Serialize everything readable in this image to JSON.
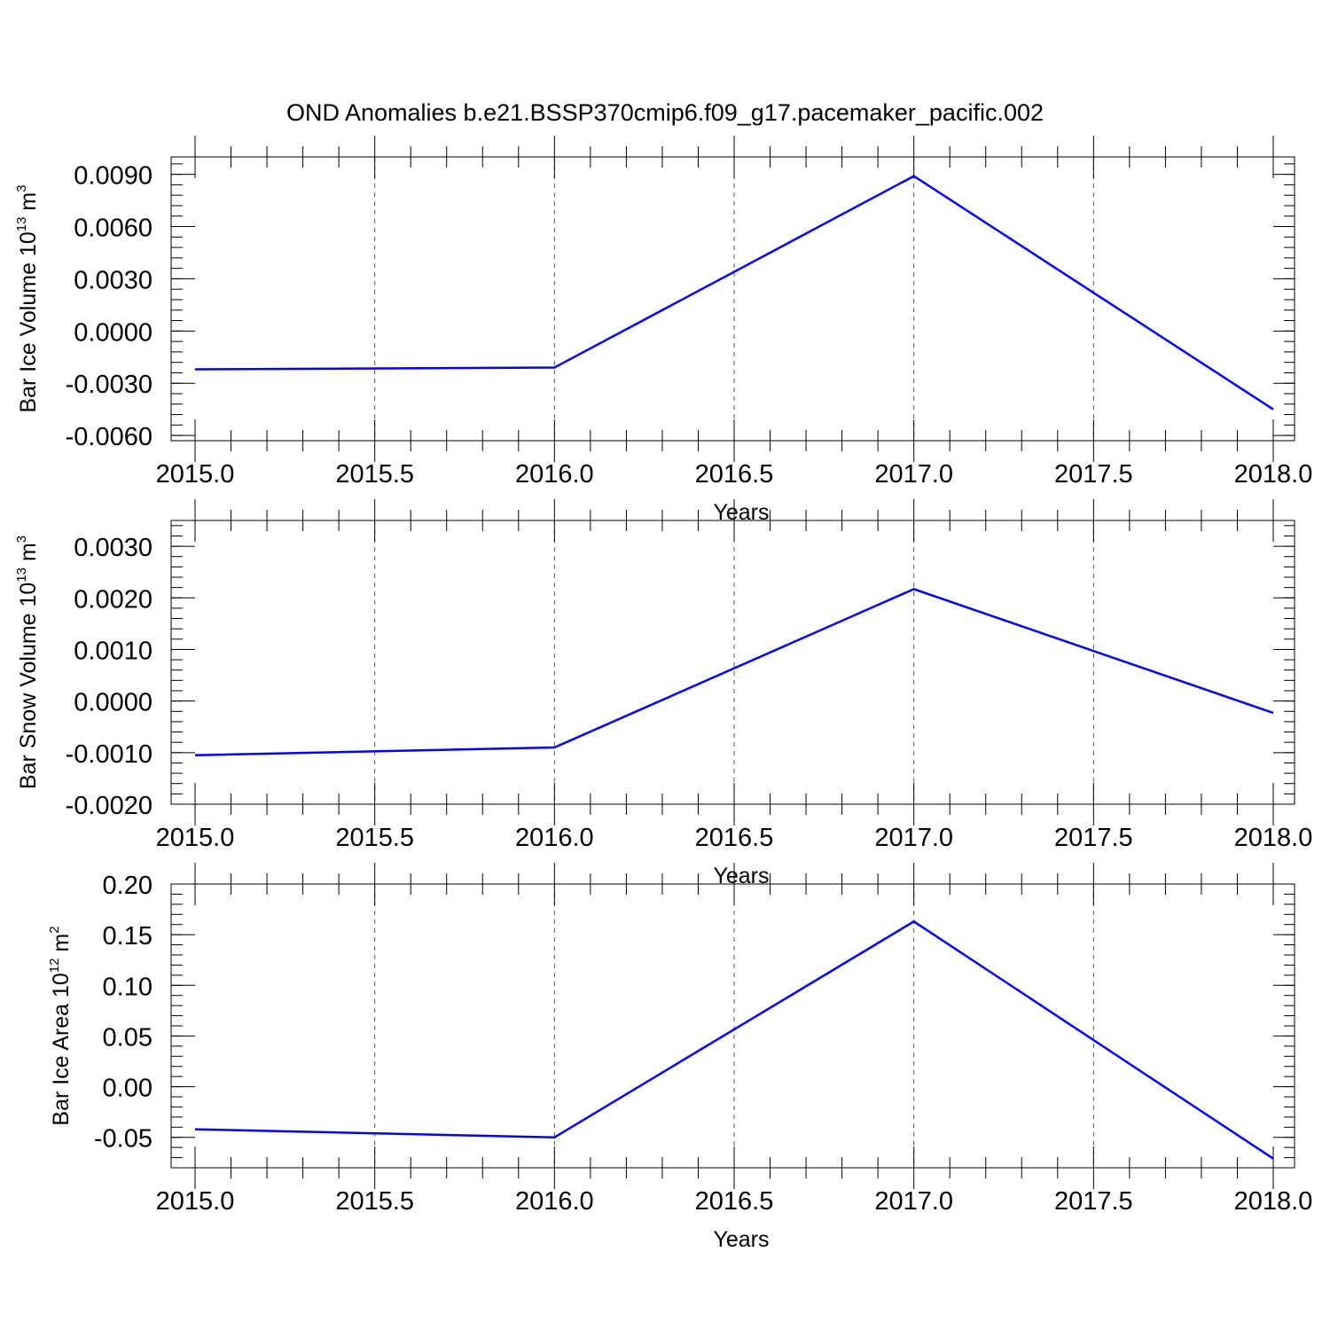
{
  "title": "OND Anomalies b.e21.BSSP370cmip6.f09_g17.pacemaker_pacific.002",
  "chart_data": [
    {
      "type": "line",
      "xlabel": "Years",
      "ylabel": {
        "text": "Bar Ice Volume 10",
        "sup1": "13",
        "unit": " m",
        "sup2": "3"
      },
      "xlim": [
        2015.0,
        2018.0
      ],
      "ylim": [
        -0.0063,
        0.01
      ],
      "xticks": [
        "2015.0",
        "2015.5",
        "2016.0",
        "2016.5",
        "2017.0",
        "2017.5",
        "2018.0"
      ],
      "yticks": [
        "0.0090",
        "0.0060",
        "0.0030",
        "0.0000",
        "-0.0030",
        "-0.0060"
      ],
      "line_color": "#0000ff",
      "grid": "vertical dashed",
      "series": [
        {
          "x": [
            2015,
            2016,
            2017,
            2018
          ],
          "values": [
            -0.0022,
            -0.0021,
            0.0089,
            -0.0045
          ]
        }
      ]
    },
    {
      "type": "line",
      "xlabel": "Years",
      "ylabel": {
        "text": "Bar Snow Volume 10",
        "sup1": "13",
        "unit": " m",
        "sup2": "3"
      },
      "xlim": [
        2015.0,
        2018.0
      ],
      "ylim": [
        -0.002,
        0.0035
      ],
      "xticks": [
        "2015.0",
        "2015.5",
        "2016.0",
        "2016.5",
        "2017.0",
        "2017.5",
        "2018.0"
      ],
      "yticks": [
        "0.0030",
        "0.0020",
        "0.0010",
        "0.0000",
        "-0.0010",
        "-0.0020"
      ],
      "line_color": "#0000ff",
      "grid": "vertical dashed",
      "series": [
        {
          "x": [
            2015,
            2016,
            2017,
            2018
          ],
          "values": [
            -0.00105,
            -0.0009,
            0.00217,
            -0.00023
          ]
        }
      ]
    },
    {
      "type": "line",
      "xlabel": "Years",
      "ylabel": {
        "text": "Bar Ice Area 10",
        "sup1": "12",
        "unit": " m",
        "sup2": "2"
      },
      "xlim": [
        2015.0,
        2018.0
      ],
      "ylim": [
        -0.08,
        0.2
      ],
      "xticks": [
        "2015.0",
        "2015.5",
        "2016.0",
        "2016.5",
        "2017.0",
        "2017.5",
        "2018.0"
      ],
      "yticks": [
        "0.20",
        "0.15",
        "0.10",
        "0.05",
        "0.00",
        "-0.05"
      ],
      "line_color": "#0000ff",
      "grid": "vertical dashed",
      "series": [
        {
          "x": [
            2015,
            2016,
            2017,
            2018
          ],
          "values": [
            -0.042,
            -0.05,
            0.163,
            -0.071
          ]
        }
      ]
    }
  ]
}
